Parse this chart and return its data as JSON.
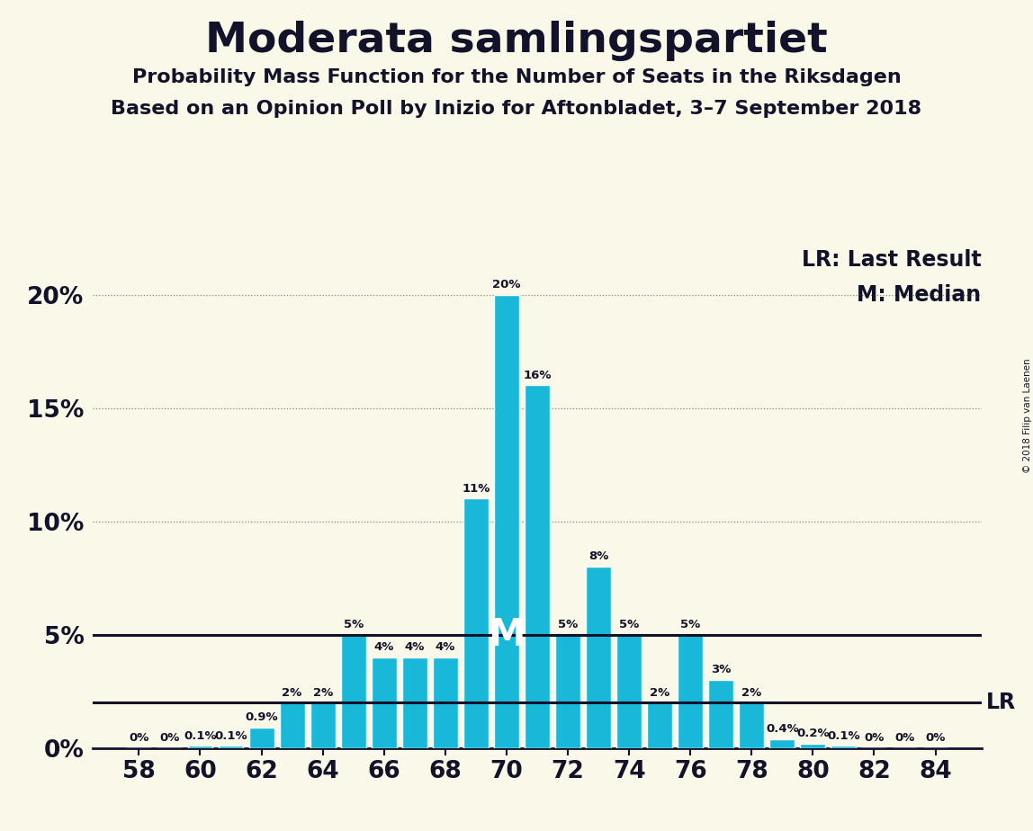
{
  "title": "Moderata samlingspartiet",
  "subtitle1": "Probability Mass Function for the Number of Seats in the Riksdagen",
  "subtitle2": "Based on an Opinion Poll by Inizio for Aftonbladet, 3–7 September 2018",
  "copyright": "© 2018 Filip van Laenen",
  "background_color": "#faf8e8",
  "bar_color": "#1ab8d8",
  "bar_edge_color": "#ffffff",
  "seats": [
    58,
    59,
    60,
    61,
    62,
    63,
    64,
    65,
    66,
    67,
    68,
    69,
    70,
    71,
    72,
    73,
    74,
    75,
    76,
    77,
    78,
    79,
    80,
    81,
    82,
    83,
    84
  ],
  "probabilities": [
    0.0,
    0.0,
    0.1,
    0.1,
    0.9,
    2.0,
    2.0,
    5.0,
    4.0,
    4.0,
    4.0,
    11.0,
    20.0,
    16.0,
    5.0,
    8.0,
    5.0,
    2.0,
    5.0,
    3.0,
    2.0,
    0.4,
    0.2,
    0.1,
    0.0,
    0.0,
    0.0
  ],
  "labels": [
    "0%",
    "0%",
    "0.1%",
    "0.1%",
    "0.9%",
    "2%",
    "2%",
    "5%",
    "4%",
    "4%",
    "4%",
    "11%",
    "20%",
    "16%",
    "5%",
    "8%",
    "5%",
    "2%",
    "5%",
    "3%",
    "2%",
    "0.4%",
    "0.2%",
    "0.1%",
    "0%",
    "0%",
    "0%"
  ],
  "median_seat": 70,
  "median_y": 5.0,
  "lr_value": 2.0,
  "yticks": [
    0,
    5,
    10,
    15,
    20
  ],
  "ylim": [
    0,
    22
  ],
  "xlim": [
    56.5,
    85.5
  ],
  "xticks": [
    58,
    60,
    62,
    64,
    66,
    68,
    70,
    72,
    74,
    76,
    78,
    80,
    82,
    84
  ],
  "title_fontsize": 34,
  "subtitle_fontsize": 16,
  "label_fontsize": 9.5,
  "axis_fontsize": 19,
  "legend_fontsize": 17,
  "m_fontsize": 30,
  "text_color": "#12122a",
  "grid_color": "#555555",
  "lr_line_color": "#12122a",
  "median_line_color": "#12122a",
  "bar_width": 0.82
}
